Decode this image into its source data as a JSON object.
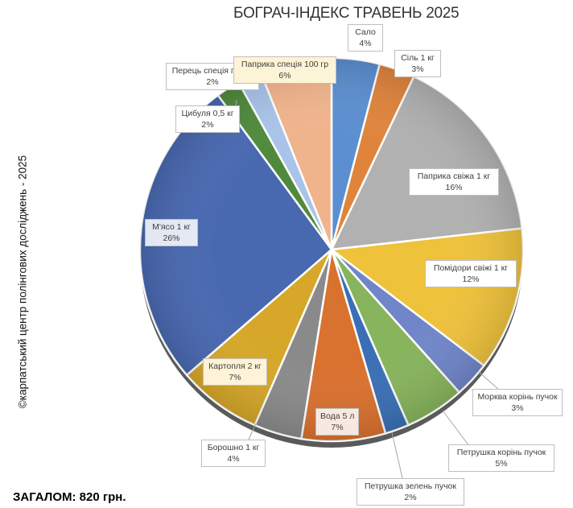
{
  "title": "БОГРАЧ-ІНДЕКС ТРАВЕНЬ 2025",
  "side_text": "©карпатський центр полінгових досліджень - 2025",
  "total": "ЗАГАЛОМ: 820 грн.",
  "chart_data": {
    "type": "pie",
    "title": "БОГРАЧ-ІНДЕКС ТРАВЕНЬ 2025",
    "slices": [
      {
        "name": "Сало",
        "value": 4,
        "label": "4%",
        "color": "#5b8fd1"
      },
      {
        "name": "Сіль 1 кг",
        "value": 3,
        "label": "3%",
        "color": "#e0843c"
      },
      {
        "name": "Паприка свіжа 1 кг",
        "value": 16,
        "label": "16%",
        "color": "#b1b1b1"
      },
      {
        "name": "Помідори свіжі 1 кг",
        "value": 12,
        "label": "12%",
        "color": "#efc23c"
      },
      {
        "name": "Морква корінь пучок",
        "value": 3,
        "label": "3%",
        "color": "#7086c9"
      },
      {
        "name": "Петрушка корінь пучок",
        "value": 5,
        "label": "5%",
        "color": "#87b45c"
      },
      {
        "name": "Петрушка зелень пучок",
        "value": 2,
        "label": "2%",
        "color": "#3a6fb5"
      },
      {
        "name": "Вода 5 л",
        "value": 7,
        "label": "7%",
        "color": "#d9712f"
      },
      {
        "name": "Борошно 1 кг",
        "value": 4,
        "label": "4%",
        "color": "#8a8a8a"
      },
      {
        "name": "Картопля 2 кг",
        "value": 7,
        "label": "7%",
        "color": "#d6a728"
      },
      {
        "name": "М'ясо 1 кг",
        "value": 26,
        "label": "26%",
        "color": "#4868b0"
      },
      {
        "name": "Цибуля 0,5 кг",
        "value": 2,
        "label": "2%",
        "color": "#4f8a3c"
      },
      {
        "name": "Перець спеція пачка",
        "value": 2,
        "label": "2%",
        "color": "#a9c4e8"
      },
      {
        "name": "Паприка спеція 100 гр",
        "value": 6,
        "label": "6%",
        "color": "#f0b48c"
      }
    ]
  }
}
